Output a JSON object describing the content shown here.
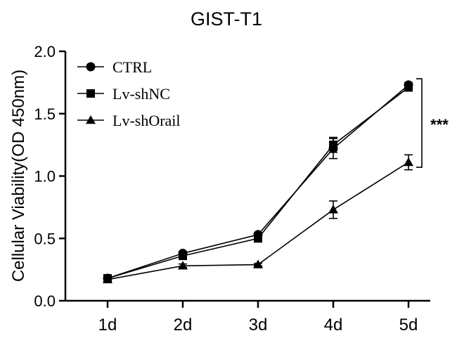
{
  "chart_data": {
    "type": "line",
    "title": "GIST-T1",
    "xlabel": "",
    "ylabel": "Cellular Viability(OD 450nm)",
    "categories": [
      "1d",
      "2d",
      "3d",
      "4d",
      "5d"
    ],
    "ylim": [
      0,
      2.0
    ],
    "yticks": [
      0.0,
      0.5,
      1.0,
      1.5,
      2.0
    ],
    "ytick_labels": [
      "0.0",
      "0.5",
      "1.0",
      "1.5",
      "2.0"
    ],
    "grid": false,
    "legend_position": "top-left",
    "series": [
      {
        "name": "CTRL",
        "marker": "circle",
        "values": [
          0.18,
          0.38,
          0.53,
          1.22,
          1.73
        ],
        "errors": [
          0.01,
          0.015,
          0.015,
          0.08,
          0.02
        ]
      },
      {
        "name": "Lv-shNC",
        "marker": "square",
        "values": [
          0.18,
          0.36,
          0.5,
          1.25,
          1.71
        ],
        "errors": [
          0.01,
          0.015,
          0.015,
          0.06,
          0.02
        ]
      },
      {
        "name": "Lv-shOrail",
        "marker": "triangle",
        "values": [
          0.17,
          0.28,
          0.29,
          0.73,
          1.11
        ],
        "errors": [
          0.01,
          0.015,
          0.01,
          0.07,
          0.06
        ]
      }
    ],
    "annotation": {
      "text": "***",
      "between": [
        "Lv-shNC",
        "Lv-shOrail"
      ],
      "at": "5d"
    }
  }
}
